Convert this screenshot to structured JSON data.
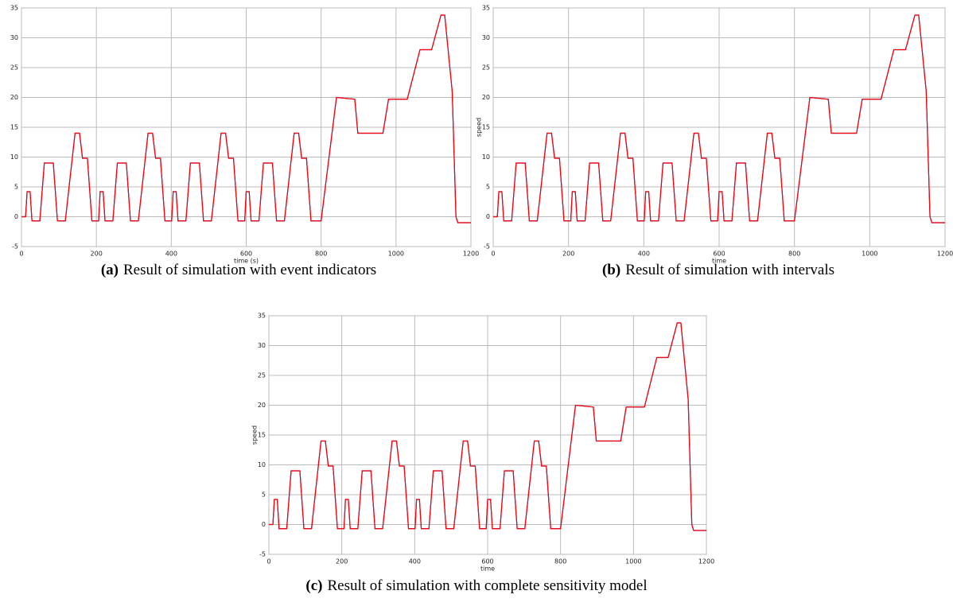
{
  "chart_data": [
    {
      "type": "line",
      "tag": "(a)",
      "title": "Result of simulation with event indicators",
      "xlabel": "time (s)",
      "x": [
        0,
        11,
        15,
        23,
        28,
        49,
        61,
        85,
        96,
        117,
        143,
        155,
        163,
        176,
        188,
        195,
        206,
        210,
        218,
        223,
        244,
        256,
        280,
        291,
        312,
        338,
        350,
        358,
        371,
        383,
        390,
        401,
        405,
        413,
        418,
        439,
        451,
        475,
        486,
        507,
        533,
        545,
        553,
        566,
        578,
        585,
        596,
        600,
        608,
        613,
        634,
        646,
        670,
        681,
        702,
        728,
        740,
        748,
        761,
        773,
        800,
        841,
        890,
        898,
        950,
        965,
        980,
        1030,
        1064,
        1095,
        1120,
        1130,
        1150,
        1160,
        1165,
        1200
      ],
      "series": [
        {
          "color": "#2020c0",
          "values": [
            0,
            0,
            4.2,
            4.2,
            -0.7,
            -0.7,
            9,
            9,
            -0.7,
            -0.7,
            14,
            14,
            9.8,
            9.8,
            -0.7,
            -0.7,
            -0.7,
            4.2,
            4.2,
            -0.7,
            -0.7,
            9,
            9,
            -0.7,
            -0.7,
            14,
            14,
            9.8,
            9.8,
            -0.7,
            -0.7,
            -0.7,
            4.2,
            4.2,
            -0.7,
            -0.7,
            9,
            9,
            -0.7,
            -0.7,
            14,
            14,
            9.8,
            9.8,
            -0.7,
            -0.7,
            -0.7,
            4.2,
            4.2,
            -0.7,
            -0.7,
            9,
            9,
            -0.7,
            -0.7,
            14,
            14,
            9.8,
            9.8,
            -0.7,
            -0.7,
            20,
            19.7,
            14,
            14,
            14,
            19.7,
            19.7,
            28,
            28,
            33.8,
            33.8,
            21,
            0,
            -1,
            -1
          ]
        },
        {
          "color": "#ff0000",
          "values": [
            0,
            0,
            4.2,
            4.2,
            -0.7,
            -0.7,
            9,
            9,
            -0.7,
            -0.7,
            14,
            14,
            9.8,
            9.8,
            -0.7,
            -0.7,
            -0.7,
            4.2,
            4.2,
            -0.7,
            -0.7,
            9,
            9,
            -0.7,
            -0.7,
            14,
            14,
            9.8,
            9.8,
            -0.7,
            -0.7,
            -0.7,
            4.2,
            4.2,
            -0.7,
            -0.7,
            9,
            9,
            -0.7,
            -0.7,
            14,
            14,
            9.8,
            9.8,
            -0.7,
            -0.7,
            -0.7,
            4.2,
            4.2,
            -0.7,
            -0.7,
            9,
            9,
            -0.7,
            -0.7,
            14,
            14,
            9.8,
            9.8,
            -0.7,
            -0.7,
            20,
            19.7,
            14,
            14,
            14,
            19.7,
            19.7,
            28,
            28,
            33.8,
            33.8,
            21,
            0,
            -1,
            -1
          ]
        }
      ],
      "xlim": [
        0,
        1200
      ],
      "xticks": [
        0,
        200,
        400,
        600,
        800,
        1000,
        1200
      ],
      "ylim": [
        -5,
        35
      ],
      "yticks": [
        -5,
        0,
        5,
        10,
        15,
        20,
        25,
        30,
        35
      ],
      "grid": true
    },
    {
      "type": "line",
      "tag": "(b)",
      "title": "Result of simulation with intervals",
      "xlabel": "time",
      "ylabel": "speed",
      "x": [
        0,
        11,
        15,
        23,
        28,
        49,
        61,
        85,
        96,
        117,
        143,
        155,
        163,
        176,
        188,
        195,
        206,
        210,
        218,
        223,
        244,
        256,
        280,
        291,
        312,
        338,
        350,
        358,
        371,
        383,
        390,
        401,
        405,
        413,
        418,
        439,
        451,
        475,
        486,
        507,
        533,
        545,
        553,
        566,
        578,
        585,
        596,
        600,
        608,
        613,
        634,
        646,
        670,
        681,
        702,
        728,
        740,
        748,
        761,
        773,
        800,
        841,
        890,
        898,
        950,
        965,
        980,
        1030,
        1064,
        1095,
        1120,
        1130,
        1150,
        1160,
        1165,
        1200
      ],
      "series": [
        {
          "color": "#2020c0",
          "values": [
            0,
            0,
            4.2,
            4.2,
            -0.7,
            -0.7,
            9,
            9,
            -0.7,
            -0.7,
            14,
            14,
            9.8,
            9.8,
            -0.7,
            -0.7,
            -0.7,
            4.2,
            4.2,
            -0.7,
            -0.7,
            9,
            9,
            -0.7,
            -0.7,
            14,
            14,
            9.8,
            9.8,
            -0.7,
            -0.7,
            -0.7,
            4.2,
            4.2,
            -0.7,
            -0.7,
            9,
            9,
            -0.7,
            -0.7,
            14,
            14,
            9.8,
            9.8,
            -0.7,
            -0.7,
            -0.7,
            4.2,
            4.2,
            -0.7,
            -0.7,
            9,
            9,
            -0.7,
            -0.7,
            14,
            14,
            9.8,
            9.8,
            -0.7,
            -0.7,
            20,
            19.7,
            14,
            14,
            14,
            19.7,
            19.7,
            28,
            28,
            33.8,
            33.8,
            21,
            0,
            -1,
            -1
          ]
        },
        {
          "color": "#ff0000",
          "values": [
            0,
            0,
            4.2,
            4.2,
            -0.7,
            -0.7,
            9,
            9,
            -0.7,
            -0.7,
            14,
            14,
            9.8,
            9.8,
            -0.7,
            -0.7,
            -0.7,
            4.2,
            4.2,
            -0.7,
            -0.7,
            9,
            9,
            -0.7,
            -0.7,
            14,
            14,
            9.8,
            9.8,
            -0.7,
            -0.7,
            -0.7,
            4.2,
            4.2,
            -0.7,
            -0.7,
            9,
            9,
            -0.7,
            -0.7,
            14,
            14,
            9.8,
            9.8,
            -0.7,
            -0.7,
            -0.7,
            4.2,
            4.2,
            -0.7,
            -0.7,
            9,
            9,
            -0.7,
            -0.7,
            14,
            14,
            9.8,
            9.8,
            -0.7,
            -0.7,
            20,
            19.7,
            14,
            14,
            14,
            19.7,
            19.7,
            28,
            28,
            33.8,
            33.8,
            21,
            0,
            -1,
            -1
          ]
        }
      ],
      "xlim": [
        0,
        1200
      ],
      "xticks": [
        0,
        200,
        400,
        600,
        800,
        1000,
        1200
      ],
      "ylim": [
        -5,
        35
      ],
      "yticks": [
        -5,
        0,
        5,
        10,
        15,
        20,
        25,
        30,
        35
      ],
      "grid": true
    },
    {
      "type": "line",
      "tag": "(c)",
      "title": "Result of simulation with complete sensitivity model",
      "xlabel": "time",
      "ylabel": "speed",
      "x": [
        0,
        11,
        15,
        23,
        28,
        49,
        61,
        85,
        96,
        117,
        143,
        155,
        163,
        176,
        188,
        195,
        206,
        210,
        218,
        223,
        244,
        256,
        280,
        291,
        312,
        338,
        350,
        358,
        371,
        383,
        390,
        401,
        405,
        413,
        418,
        439,
        451,
        475,
        486,
        507,
        533,
        545,
        553,
        566,
        578,
        585,
        596,
        600,
        608,
        613,
        634,
        646,
        670,
        681,
        702,
        728,
        740,
        748,
        761,
        773,
        800,
        841,
        890,
        898,
        950,
        965,
        980,
        1030,
        1064,
        1095,
        1120,
        1130,
        1150,
        1160,
        1165,
        1200
      ],
      "series": [
        {
          "color": "#2020c0",
          "values": [
            0,
            0,
            4.2,
            4.2,
            -0.7,
            -0.7,
            9,
            9,
            -0.7,
            -0.7,
            14,
            14,
            9.8,
            9.8,
            -0.7,
            -0.7,
            -0.7,
            4.2,
            4.2,
            -0.7,
            -0.7,
            9,
            9,
            -0.7,
            -0.7,
            14,
            14,
            9.8,
            9.8,
            -0.7,
            -0.7,
            -0.7,
            4.2,
            4.2,
            -0.7,
            -0.7,
            9,
            9,
            -0.7,
            -0.7,
            14,
            14,
            9.8,
            9.8,
            -0.7,
            -0.7,
            -0.7,
            4.2,
            4.2,
            -0.7,
            -0.7,
            9,
            9,
            -0.7,
            -0.7,
            14,
            14,
            9.8,
            9.8,
            -0.7,
            -0.7,
            20,
            19.7,
            14,
            14,
            14,
            19.7,
            19.7,
            28,
            28,
            33.8,
            33.8,
            21,
            0,
            -1,
            -1
          ]
        },
        {
          "color": "#ff0000",
          "values": [
            0,
            0,
            4.2,
            4.2,
            -0.7,
            -0.7,
            9,
            9,
            -0.7,
            -0.7,
            14,
            14,
            9.8,
            9.8,
            -0.7,
            -0.7,
            -0.7,
            4.2,
            4.2,
            -0.7,
            -0.7,
            9,
            9,
            -0.7,
            -0.7,
            14,
            14,
            9.8,
            9.8,
            -0.7,
            -0.7,
            -0.7,
            4.2,
            4.2,
            -0.7,
            -0.7,
            9,
            9,
            -0.7,
            -0.7,
            14,
            14,
            9.8,
            9.8,
            -0.7,
            -0.7,
            -0.7,
            4.2,
            4.2,
            -0.7,
            -0.7,
            9,
            9,
            -0.7,
            -0.7,
            14,
            14,
            9.8,
            9.8,
            -0.7,
            -0.7,
            20,
            19.7,
            14,
            14,
            14,
            19.7,
            19.7,
            28,
            28,
            33.8,
            33.8,
            21,
            0,
            -1,
            -1
          ]
        }
      ],
      "xlim": [
        0,
        1200
      ],
      "xticks": [
        0,
        200,
        400,
        600,
        800,
        1000,
        1200
      ],
      "ylim": [
        -5,
        35
      ],
      "yticks": [
        -5,
        0,
        5,
        10,
        15,
        20,
        25,
        30,
        35
      ],
      "grid": true
    }
  ]
}
